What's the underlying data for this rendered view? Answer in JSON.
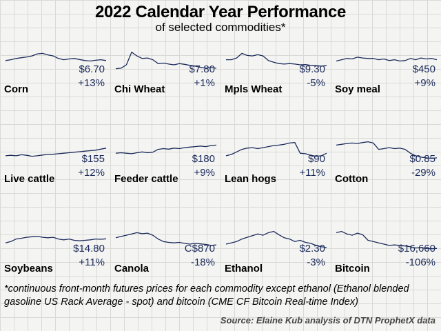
{
  "header": {
    "title": "2022 Calendar Year Performance",
    "subtitle": "of selected commodities*"
  },
  "footnote": "*continuous front-month futures prices for each commodity except ethanol (Ethanol blended gasoline US Rack Average - spot) and bitcoin (CME CF Bitcoin Real-time Index)",
  "source": "Source: Elaine Kub analysis of DTN ProphetX data",
  "colors": {
    "line": "#1b2a5a",
    "grid": "#d9d9d6",
    "background": "#f4f4f2"
  },
  "chart_data": [
    {
      "type": "line",
      "title": "Corn",
      "price": "$6.70",
      "change": "+13%",
      "series": [
        {
          "values": [
            0.52,
            0.55,
            0.6,
            0.63,
            0.66,
            0.7,
            0.78,
            0.8,
            0.74,
            0.7,
            0.6,
            0.55,
            0.58,
            0.6,
            0.56,
            0.52,
            0.5,
            0.53,
            0.55,
            0.52
          ]
        }
      ]
    },
    {
      "type": "line",
      "title": "Chi Wheat",
      "price": "$7.80",
      "change": "+1%",
      "series": [
        {
          "values": [
            0.2,
            0.22,
            0.35,
            0.85,
            0.7,
            0.6,
            0.62,
            0.55,
            0.4,
            0.42,
            0.38,
            0.35,
            0.4,
            0.37,
            0.33,
            0.3,
            0.25,
            0.22,
            0.24,
            0.22
          ]
        }
      ]
    },
    {
      "type": "line",
      "title": "Mpls Wheat",
      "price": "$9.30",
      "change": "-5%",
      "series": [
        {
          "values": [
            0.55,
            0.55,
            0.62,
            0.8,
            0.72,
            0.7,
            0.75,
            0.7,
            0.52,
            0.45,
            0.4,
            0.38,
            0.4,
            0.38,
            0.35,
            0.36,
            0.33,
            0.32,
            0.3,
            0.32
          ]
        }
      ]
    },
    {
      "type": "line",
      "title": "Soy meal",
      "price": "$450",
      "change": "+9%",
      "series": [
        {
          "values": [
            0.5,
            0.55,
            0.6,
            0.58,
            0.65,
            0.62,
            0.6,
            0.6,
            0.55,
            0.58,
            0.52,
            0.55,
            0.5,
            0.52,
            0.6,
            0.55,
            0.62,
            0.58,
            0.6,
            0.55
          ]
        }
      ]
    },
    {
      "type": "line",
      "title": "Live cattle",
      "price": "$155",
      "change": "+12%",
      "series": [
        {
          "values": [
            0.3,
            0.32,
            0.3,
            0.34,
            0.32,
            0.28,
            0.3,
            0.33,
            0.35,
            0.36,
            0.38,
            0.4,
            0.42,
            0.44,
            0.46,
            0.48,
            0.5,
            0.52,
            0.56,
            0.6
          ]
        }
      ]
    },
    {
      "type": "line",
      "title": "Feeder cattle",
      "price": "$180",
      "change": "+9%",
      "series": [
        {
          "values": [
            0.4,
            0.42,
            0.4,
            0.38,
            0.42,
            0.45,
            0.42,
            0.44,
            0.55,
            0.58,
            0.56,
            0.6,
            0.58,
            0.62,
            0.64,
            0.66,
            0.68,
            0.66,
            0.7,
            0.72
          ]
        }
      ]
    },
    {
      "type": "line",
      "title": "Lean hogs",
      "price": "$90",
      "change": "+11%",
      "series": [
        {
          "values": [
            0.3,
            0.35,
            0.45,
            0.55,
            0.6,
            0.62,
            0.58,
            0.62,
            0.66,
            0.7,
            0.72,
            0.75,
            0.8,
            0.82,
            0.4,
            0.38,
            0.32,
            0.28,
            0.3,
            0.4
          ]
        }
      ]
    },
    {
      "type": "line",
      "title": "Cotton",
      "price": "$0.85",
      "change": "-29%",
      "series": [
        {
          "values": [
            0.72,
            0.75,
            0.78,
            0.8,
            0.78,
            0.82,
            0.85,
            0.8,
            0.55,
            0.58,
            0.62,
            0.58,
            0.6,
            0.55,
            0.4,
            0.3,
            0.25,
            0.22,
            0.2,
            0.22
          ]
        }
      ]
    },
    {
      "type": "line",
      "title": "Soybeans",
      "price": "$14.80",
      "change": "+11%",
      "series": [
        {
          "values": [
            0.4,
            0.45,
            0.55,
            0.58,
            0.62,
            0.64,
            0.66,
            0.62,
            0.6,
            0.62,
            0.55,
            0.52,
            0.55,
            0.5,
            0.48,
            0.5,
            0.52,
            0.55,
            0.54,
            0.56
          ]
        }
      ]
    },
    {
      "type": "line",
      "title": "Canola",
      "price": "C$870",
      "change": "-18%",
      "series": [
        {
          "values": [
            0.6,
            0.65,
            0.7,
            0.75,
            0.8,
            0.76,
            0.78,
            0.7,
            0.55,
            0.45,
            0.42,
            0.4,
            0.42,
            0.38,
            0.35,
            0.38,
            0.36,
            0.34,
            0.3,
            0.32
          ]
        }
      ]
    },
    {
      "type": "line",
      "title": "Ethanol",
      "price": "$2.30",
      "change": "-3%",
      "series": [
        {
          "values": [
            0.35,
            0.4,
            0.45,
            0.55,
            0.62,
            0.68,
            0.75,
            0.7,
            0.8,
            0.85,
            0.72,
            0.6,
            0.55,
            0.45,
            0.5,
            0.42,
            0.38,
            0.3,
            0.25,
            0.22
          ]
        }
      ]
    },
    {
      "type": "line",
      "title": "Bitcoin",
      "price": "$16,660",
      "change": "-106%",
      "series": [
        {
          "values": [
            0.8,
            0.85,
            0.75,
            0.7,
            0.78,
            0.72,
            0.5,
            0.45,
            0.4,
            0.35,
            0.3,
            0.32,
            0.3,
            0.28,
            0.25,
            0.2,
            0.22,
            0.18,
            0.17,
            0.18
          ]
        }
      ]
    }
  ]
}
